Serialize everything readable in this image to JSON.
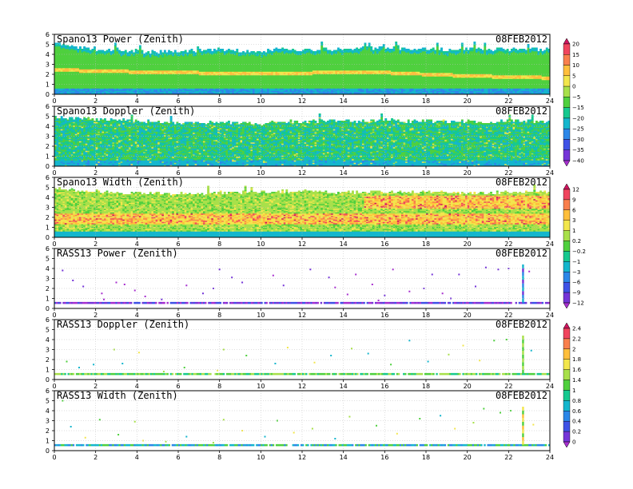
{
  "chart_data": [
    {
      "type": "heatmap",
      "title": "Spano13 Power (Zenith)",
      "date": "08FEB2012",
      "xlim": [
        0,
        24
      ],
      "ylim": [
        0,
        6
      ],
      "x_ticks": [
        "0",
        "2",
        "4",
        "6",
        "8",
        "10",
        "12",
        "14",
        "16",
        "18",
        "20",
        "22",
        "24"
      ],
      "y_ticks": [
        "0",
        "1",
        "2",
        "3",
        "4",
        "5",
        "6"
      ],
      "grid": true,
      "colorbar": "A",
      "top_km": [
        5.2,
        4.9,
        4.5,
        4.4,
        4.4,
        4.3,
        4.4,
        4.4,
        4.6,
        4.4,
        4.3,
        4.7,
        4.5,
        4.6,
        4.6,
        4.7,
        4.7,
        4.6,
        4.6,
        4.5,
        4.6,
        4.6,
        4.6,
        4.6,
        4.6
      ],
      "band_hours_km": [
        [
          0,
          2.4
        ],
        [
          4,
          2.2
        ],
        [
          10,
          2.0
        ],
        [
          15,
          2.2
        ],
        [
          20,
          1.8
        ],
        [
          24,
          1.6
        ]
      ],
      "series": [
        {
          "name": "background",
          "value": -12
        },
        {
          "name": "low-layer band",
          "value": 2
        }
      ]
    },
    {
      "type": "heatmap",
      "title": "Spano13 Doppler (Zenith)",
      "date": "08FEB2012",
      "xlim": [
        0,
        24
      ],
      "ylim": [
        0,
        6
      ],
      "x_ticks": [
        "0",
        "2",
        "4",
        "6",
        "8",
        "10",
        "12",
        "14",
        "16",
        "18",
        "20",
        "22",
        "24"
      ],
      "y_ticks": [
        "0",
        "1",
        "2",
        "3",
        "4",
        "5",
        "6"
      ],
      "grid": true,
      "colorbar": "A",
      "top_km": [
        5.0,
        4.9,
        4.8,
        4.7,
        4.6,
        4.5,
        4.4,
        4.4,
        4.5,
        4.4,
        4.3,
        4.6,
        4.5,
        4.6,
        4.6,
        4.6,
        4.7,
        4.6,
        4.6,
        4.5,
        4.6,
        4.5,
        4.6,
        4.6,
        4.6
      ],
      "series": [
        {
          "name": "background",
          "value": -18
        }
      ]
    },
    {
      "type": "heatmap",
      "title": "Spano13 Width (Zenith)",
      "date": "08FEB2012",
      "xlim": [
        0,
        24
      ],
      "ylim": [
        0,
        6
      ],
      "x_ticks": [
        "0",
        "2",
        "4",
        "6",
        "8",
        "10",
        "12",
        "14",
        "16",
        "18",
        "20",
        "22",
        "24"
      ],
      "y_ticks": [
        "0",
        "1",
        "2",
        "3",
        "4",
        "5",
        "6"
      ],
      "grid": true,
      "colorbar": "B",
      "top_km": [
        4.9,
        4.8,
        4.7,
        4.5,
        4.5,
        4.5,
        4.4,
        4.4,
        4.6,
        4.6,
        4.6,
        4.7,
        4.7,
        4.6,
        4.6,
        4.6,
        4.6,
        4.6,
        4.6,
        4.5,
        4.5,
        4.5,
        4.6,
        4.6,
        4.6
      ],
      "series": [
        {
          "name": "background",
          "value": 0.2
        },
        {
          "name": "turbulent layer",
          "value": 6
        }
      ]
    },
    {
      "type": "scatter",
      "title": "RASS13 Power (Zenith)",
      "date": "08FEB2012",
      "xlim": [
        0,
        24
      ],
      "ylim": [
        0,
        6
      ],
      "x_ticks": [
        "0",
        "2",
        "4",
        "6",
        "8",
        "10",
        "12",
        "14",
        "16",
        "18",
        "20",
        "22",
        "24"
      ],
      "y_ticks": [
        "0",
        "1",
        "2",
        "3",
        "4",
        "5",
        "6"
      ],
      "grid": true,
      "colorbar": "B",
      "baseline_km": [
        0.45,
        0.65
      ],
      "spike": {
        "x": 22.7,
        "y": [
          0.6,
          4.4
        ]
      },
      "points": [
        [
          0.4,
          3.8
        ],
        [
          0.9,
          2.8
        ],
        [
          1.4,
          2.2
        ],
        [
          2.3,
          1.5
        ],
        [
          3.0,
          2.6
        ],
        [
          3.4,
          2.4
        ],
        [
          3.9,
          1.8
        ],
        [
          4.4,
          1.2
        ],
        [
          5.2,
          0.9
        ],
        [
          6.4,
          2.3
        ],
        [
          7.2,
          1.5
        ],
        [
          7.7,
          2.0
        ],
        [
          8.0,
          3.9
        ],
        [
          8.6,
          3.1
        ],
        [
          9.1,
          2.6
        ],
        [
          10.6,
          3.3
        ],
        [
          11.1,
          2.3
        ],
        [
          12.4,
          3.9
        ],
        [
          13.3,
          3.1
        ],
        [
          13.6,
          2.1
        ],
        [
          14.2,
          1.4
        ],
        [
          14.6,
          3.4
        ],
        [
          15.4,
          2.4
        ],
        [
          16.0,
          1.3
        ],
        [
          16.4,
          3.9
        ],
        [
          17.2,
          1.7
        ],
        [
          17.9,
          2.0
        ],
        [
          18.3,
          3.4
        ],
        [
          18.8,
          1.5
        ],
        [
          19.6,
          3.4
        ],
        [
          20.4,
          2.2
        ],
        [
          20.9,
          4.1
        ],
        [
          21.5,
          3.9
        ],
        [
          22.0,
          4.0
        ],
        [
          23.0,
          3.7
        ],
        [
          2.4,
          0.9
        ],
        [
          15.7,
          0.8
        ],
        [
          19.2,
          1.0
        ]
      ]
    },
    {
      "type": "scatter",
      "title": "RASS13 Doppler (Zenith)",
      "date": "08FEB2012",
      "xlim": [
        0,
        24
      ],
      "ylim": [
        0,
        6
      ],
      "x_ticks": [
        "0",
        "2",
        "4",
        "6",
        "8",
        "10",
        "12",
        "14",
        "16",
        "18",
        "20",
        "22",
        "24"
      ],
      "y_ticks": [
        "0",
        "1",
        "2",
        "3",
        "4",
        "5",
        "6"
      ],
      "grid": true,
      "colorbar": "C",
      "baseline_km": [
        0.45,
        0.65
      ],
      "spike": {
        "x": 22.7,
        "y": [
          0.6,
          4.4
        ]
      },
      "points": [
        [
          0.6,
          1.8
        ],
        [
          1.2,
          1.2
        ],
        [
          1.9,
          1.5
        ],
        [
          2.9,
          3.0
        ],
        [
          3.3,
          1.6
        ],
        [
          4.1,
          2.7
        ],
        [
          5.3,
          0.8
        ],
        [
          6.3,
          1.2
        ],
        [
          7.9,
          0.9
        ],
        [
          8.2,
          3.0
        ],
        [
          9.3,
          2.4
        ],
        [
          10.7,
          1.6
        ],
        [
          11.3,
          3.2
        ],
        [
          12.6,
          1.7
        ],
        [
          13.4,
          2.4
        ],
        [
          14.4,
          3.1
        ],
        [
          15.2,
          2.6
        ],
        [
          16.3,
          1.5
        ],
        [
          17.2,
          3.9
        ],
        [
          18.1,
          1.8
        ],
        [
          19.1,
          2.5
        ],
        [
          19.8,
          3.4
        ],
        [
          20.6,
          1.9
        ],
        [
          21.3,
          3.9
        ],
        [
          21.9,
          4.0
        ],
        [
          23.1,
          2.9
        ]
      ]
    },
    {
      "type": "scatter",
      "title": "RASS13 Width (Zenith)",
      "date": "08FEB2012",
      "xlim": [
        0,
        24
      ],
      "ylim": [
        0,
        6
      ],
      "x_ticks": [
        "0",
        "2",
        "4",
        "6",
        "8",
        "10",
        "12",
        "14",
        "16",
        "18",
        "20",
        "22",
        "24"
      ],
      "y_ticks": [
        "0",
        "1",
        "2",
        "3",
        "4",
        "5",
        "6"
      ],
      "grid": true,
      "colorbar": "C",
      "baseline_km": [
        0.45,
        0.65
      ],
      "spike": {
        "x": 22.7,
        "y": [
          0.6,
          4.4
        ]
      },
      "points": [
        [
          0.4,
          5.0
        ],
        [
          0.8,
          2.4
        ],
        [
          1.5,
          1.3
        ],
        [
          2.2,
          3.1
        ],
        [
          3.1,
          1.6
        ],
        [
          3.9,
          2.9
        ],
        [
          4.3,
          1.0
        ],
        [
          5.4,
          0.9
        ],
        [
          6.4,
          1.4
        ],
        [
          7.7,
          0.8
        ],
        [
          8.2,
          3.1
        ],
        [
          9.1,
          2.0
        ],
        [
          10.2,
          1.4
        ],
        [
          10.8,
          3.0
        ],
        [
          11.6,
          1.8
        ],
        [
          12.5,
          2.2
        ],
        [
          13.6,
          1.2
        ],
        [
          14.3,
          3.4
        ],
        [
          15.6,
          2.5
        ],
        [
          16.6,
          1.7
        ],
        [
          17.7,
          3.2
        ],
        [
          18.7,
          3.5
        ],
        [
          19.4,
          2.2
        ],
        [
          20.3,
          2.8
        ],
        [
          20.8,
          4.2
        ],
        [
          21.6,
          3.8
        ],
        [
          22.1,
          4.0
        ],
        [
          23.2,
          2.6
        ]
      ]
    }
  ],
  "colorbars": {
    "A": {
      "labels": [
        "20",
        "15",
        "10",
        "5",
        "0",
        "−5",
        "−15",
        "−20",
        "−25",
        "−30",
        "−35",
        "−40"
      ],
      "values": [
        20,
        15,
        10,
        5,
        0,
        -5,
        -15,
        -20,
        -25,
        -30,
        -35,
        -40
      ],
      "colors": [
        "#d0155f",
        "#f0455e",
        "#f97f4d",
        "#ffbf3c",
        "#f2e64c",
        "#a8e04a",
        "#4fd03e",
        "#16c98f",
        "#14b6cd",
        "#2c87e8",
        "#3f52e6",
        "#7535d8",
        "#a72fcf"
      ]
    },
    "B": {
      "labels": [
        "12",
        "9",
        "6",
        "3",
        "1",
        "0.2",
        "−0.2",
        "−1",
        "−3",
        "−6",
        "−9",
        "−12"
      ],
      "values": [
        12,
        9,
        6,
        3,
        1,
        0.2,
        -0.2,
        -1,
        -3,
        -6,
        -9,
        -12
      ],
      "colors": [
        "#d0155f",
        "#f0455e",
        "#f97f4d",
        "#ffbf3c",
        "#f2e64c",
        "#a8e04a",
        "#4fd03e",
        "#16c98f",
        "#14b6cd",
        "#2c87e8",
        "#3f52e6",
        "#7535d8",
        "#a72fcf"
      ]
    },
    "C": {
      "labels": [
        "2.4",
        "2.2",
        "2",
        "1.8",
        "1.6",
        "1.4",
        "1",
        "0.8",
        "0.6",
        "0.4",
        "0.2",
        "0"
      ],
      "values": [
        2.4,
        2.2,
        2,
        1.8,
        1.6,
        1.4,
        1,
        0.8,
        0.6,
        0.4,
        0.2,
        0
      ],
      "colors": [
        "#d0155f",
        "#f0455e",
        "#f97f4d",
        "#ffbf3c",
        "#f2e64c",
        "#a8e04a",
        "#4fd03e",
        "#16c98f",
        "#14b6cd",
        "#2c87e8",
        "#3f52e6",
        "#7535d8",
        "#a72fcf"
      ]
    }
  }
}
